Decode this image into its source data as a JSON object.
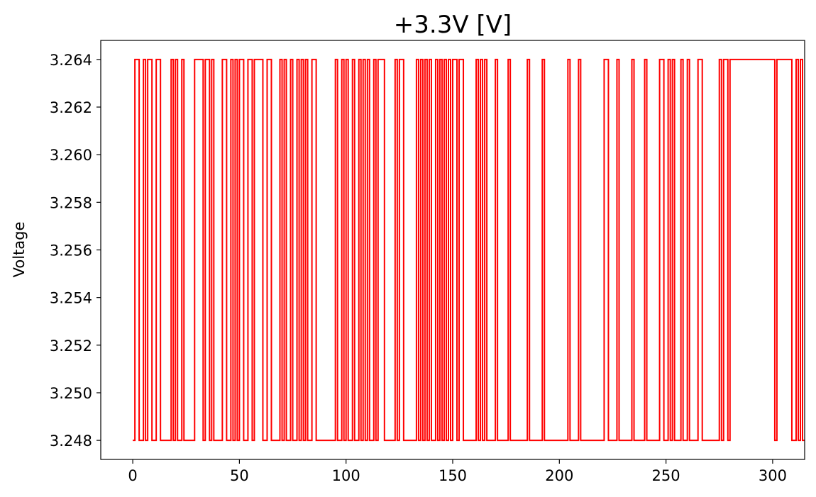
{
  "chart_data": {
    "type": "line",
    "title": "+3.3V [V]",
    "xlabel": "",
    "ylabel": "Voltage",
    "xlim": [
      -15,
      315
    ],
    "ylim": [
      3.2472,
      3.2648
    ],
    "x_ticks": [
      0,
      50,
      100,
      150,
      200,
      250,
      300
    ],
    "y_ticks": [
      3.248,
      3.25,
      3.252,
      3.254,
      3.256,
      3.258,
      3.26,
      3.262,
      3.264
    ],
    "x_tick_labels": [
      "0",
      "50",
      "100",
      "150",
      "200",
      "250",
      "300"
    ],
    "y_tick_labels": [
      "3.248",
      "3.250",
      "3.252",
      "3.254",
      "3.256",
      "3.258",
      "3.260",
      "3.262",
      "3.264"
    ],
    "grid": false,
    "series": [
      {
        "color": "#ff0000",
        "step": "post",
        "values": [
          3.248,
          3.264,
          3.264,
          3.248,
          3.248,
          3.264,
          3.248,
          3.264,
          3.264,
          3.248,
          3.248,
          3.264,
          3.264,
          3.248,
          3.248,
          3.248,
          3.248,
          3.248,
          3.264,
          3.248,
          3.264,
          3.248,
          3.248,
          3.264,
          3.248,
          3.248,
          3.248,
          3.248,
          3.248,
          3.264,
          3.264,
          3.264,
          3.264,
          3.248,
          3.264,
          3.264,
          3.248,
          3.264,
          3.248,
          3.248,
          3.248,
          3.248,
          3.264,
          3.264,
          3.248,
          3.248,
          3.264,
          3.248,
          3.264,
          3.248,
          3.264,
          3.264,
          3.248,
          3.248,
          3.264,
          3.264,
          3.248,
          3.264,
          3.264,
          3.264,
          3.264,
          3.248,
          3.248,
          3.264,
          3.264,
          3.248,
          3.248,
          3.248,
          3.248,
          3.264,
          3.248,
          3.264,
          3.248,
          3.248,
          3.264,
          3.248,
          3.248,
          3.264,
          3.248,
          3.264,
          3.248,
          3.264,
          3.248,
          3.248,
          3.264,
          3.264,
          3.248,
          3.248,
          3.248,
          3.248,
          3.248,
          3.248,
          3.248,
          3.248,
          3.248,
          3.264,
          3.248,
          3.248,
          3.264,
          3.248,
          3.264,
          3.248,
          3.248,
          3.264,
          3.248,
          3.248,
          3.264,
          3.248,
          3.264,
          3.248,
          3.264,
          3.248,
          3.248,
          3.264,
          3.248,
          3.264,
          3.264,
          3.264,
          3.248,
          3.248,
          3.248,
          3.248,
          3.248,
          3.264,
          3.248,
          3.264,
          3.264,
          3.248,
          3.248,
          3.248,
          3.248,
          3.248,
          3.248,
          3.264,
          3.248,
          3.264,
          3.248,
          3.264,
          3.248,
          3.264,
          3.248,
          3.248,
          3.264,
          3.248,
          3.264,
          3.248,
          3.264,
          3.248,
          3.264,
          3.248,
          3.264,
          3.264,
          3.248,
          3.264,
          3.264,
          3.248,
          3.248,
          3.248,
          3.248,
          3.248,
          3.248,
          3.264,
          3.248,
          3.264,
          3.248,
          3.264,
          3.248,
          3.248,
          3.248,
          3.248,
          3.264,
          3.248,
          3.248,
          3.248,
          3.248,
          3.248,
          3.264,
          3.248,
          3.248,
          3.248,
          3.248,
          3.248,
          3.248,
          3.248,
          3.248,
          3.264,
          3.248,
          3.248,
          3.248,
          3.248,
          3.248,
          3.248,
          3.264,
          3.248,
          3.248,
          3.248,
          3.248,
          3.248,
          3.248,
          3.248,
          3.248,
          3.248,
          3.248,
          3.248,
          3.264,
          3.248,
          3.248,
          3.248,
          3.248,
          3.264,
          3.248,
          3.248,
          3.248,
          3.248,
          3.248,
          3.248,
          3.248,
          3.248,
          3.248,
          3.248,
          3.248,
          3.264,
          3.264,
          3.248,
          3.248,
          3.248,
          3.248,
          3.264,
          3.248,
          3.248,
          3.248,
          3.248,
          3.248,
          3.248,
          3.264,
          3.248,
          3.248,
          3.248,
          3.248,
          3.248,
          3.264,
          3.248,
          3.248,
          3.248,
          3.248,
          3.248,
          3.248,
          3.264,
          3.264,
          3.248,
          3.248,
          3.264,
          3.248,
          3.264,
          3.248,
          3.248,
          3.248,
          3.264,
          3.248,
          3.248,
          3.264,
          3.248,
          3.248,
          3.248,
          3.248,
          3.264,
          3.264,
          3.248,
          3.248,
          3.248,
          3.248,
          3.248,
          3.248,
          3.248,
          3.248,
          3.264,
          3.248,
          3.264,
          3.264,
          3.248,
          3.264,
          3.264,
          3.264,
          3.264,
          3.264,
          3.264,
          3.264,
          3.264,
          3.264,
          3.264,
          3.264,
          3.264,
          3.264,
          3.264,
          3.264,
          3.264,
          3.264,
          3.264,
          3.264,
          3.264,
          3.264,
          3.248,
          3.264,
          3.264,
          3.264,
          3.264,
          3.264,
          3.264,
          3.264,
          3.248,
          3.248,
          3.264,
          3.248,
          3.264,
          3.248,
          3.248
        ]
      }
    ]
  }
}
